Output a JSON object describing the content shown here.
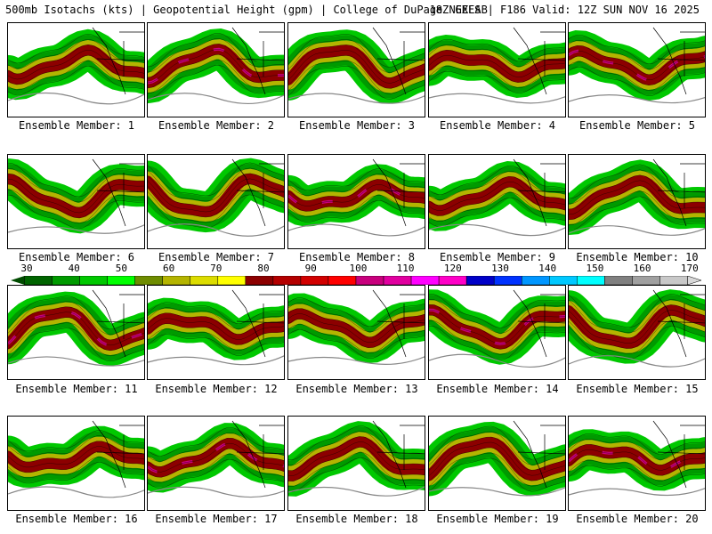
{
  "header": {
    "left": "500mb Isotachs (kts) | Geopotential Height (gpm) | College of DuPage NEXLAB",
    "right": "18Z GEFS | F186 Valid: 12Z SUN NOV 16 2025"
  },
  "members": [
    {
      "label": "Ensemble Member: 1"
    },
    {
      "label": "Ensemble Member: 2"
    },
    {
      "label": "Ensemble Member: 3"
    },
    {
      "label": "Ensemble Member: 4"
    },
    {
      "label": "Ensemble Member: 5"
    },
    {
      "label": "Ensemble Member: 6"
    },
    {
      "label": "Ensemble Member: 7"
    },
    {
      "label": "Ensemble Member: 8"
    },
    {
      "label": "Ensemble Member: 9"
    },
    {
      "label": "Ensemble Member: 10"
    },
    {
      "label": "Ensemble Member: 11"
    },
    {
      "label": "Ensemble Member: 12"
    },
    {
      "label": "Ensemble Member: 13"
    },
    {
      "label": "Ensemble Member: 14"
    },
    {
      "label": "Ensemble Member: 15"
    },
    {
      "label": "Ensemble Member: 16"
    },
    {
      "label": "Ensemble Member: 17"
    },
    {
      "label": "Ensemble Member: 18"
    },
    {
      "label": "Ensemble Member: 19"
    },
    {
      "label": "Ensemble Member: 20"
    }
  ],
  "colorbar": {
    "ticks": [
      "30",
      "40",
      "50",
      "60",
      "70",
      "80",
      "90",
      "100",
      "110",
      "120",
      "130",
      "140",
      "150",
      "160",
      "170"
    ],
    "colors": [
      "#006400",
      "#009a00",
      "#00c800",
      "#00ff00",
      "#6e8c00",
      "#b4b400",
      "#dcdc00",
      "#ffff00",
      "#8c0000",
      "#b40000",
      "#d20000",
      "#ff0000",
      "#c8007d",
      "#e100a0",
      "#ff00ff",
      "#ff00c8",
      "#0000c8",
      "#0032ff",
      "#0096ff",
      "#00c8ff",
      "#00ffff",
      "#808080",
      "#a0a0a0",
      "#c8c8c8"
    ]
  }
}
